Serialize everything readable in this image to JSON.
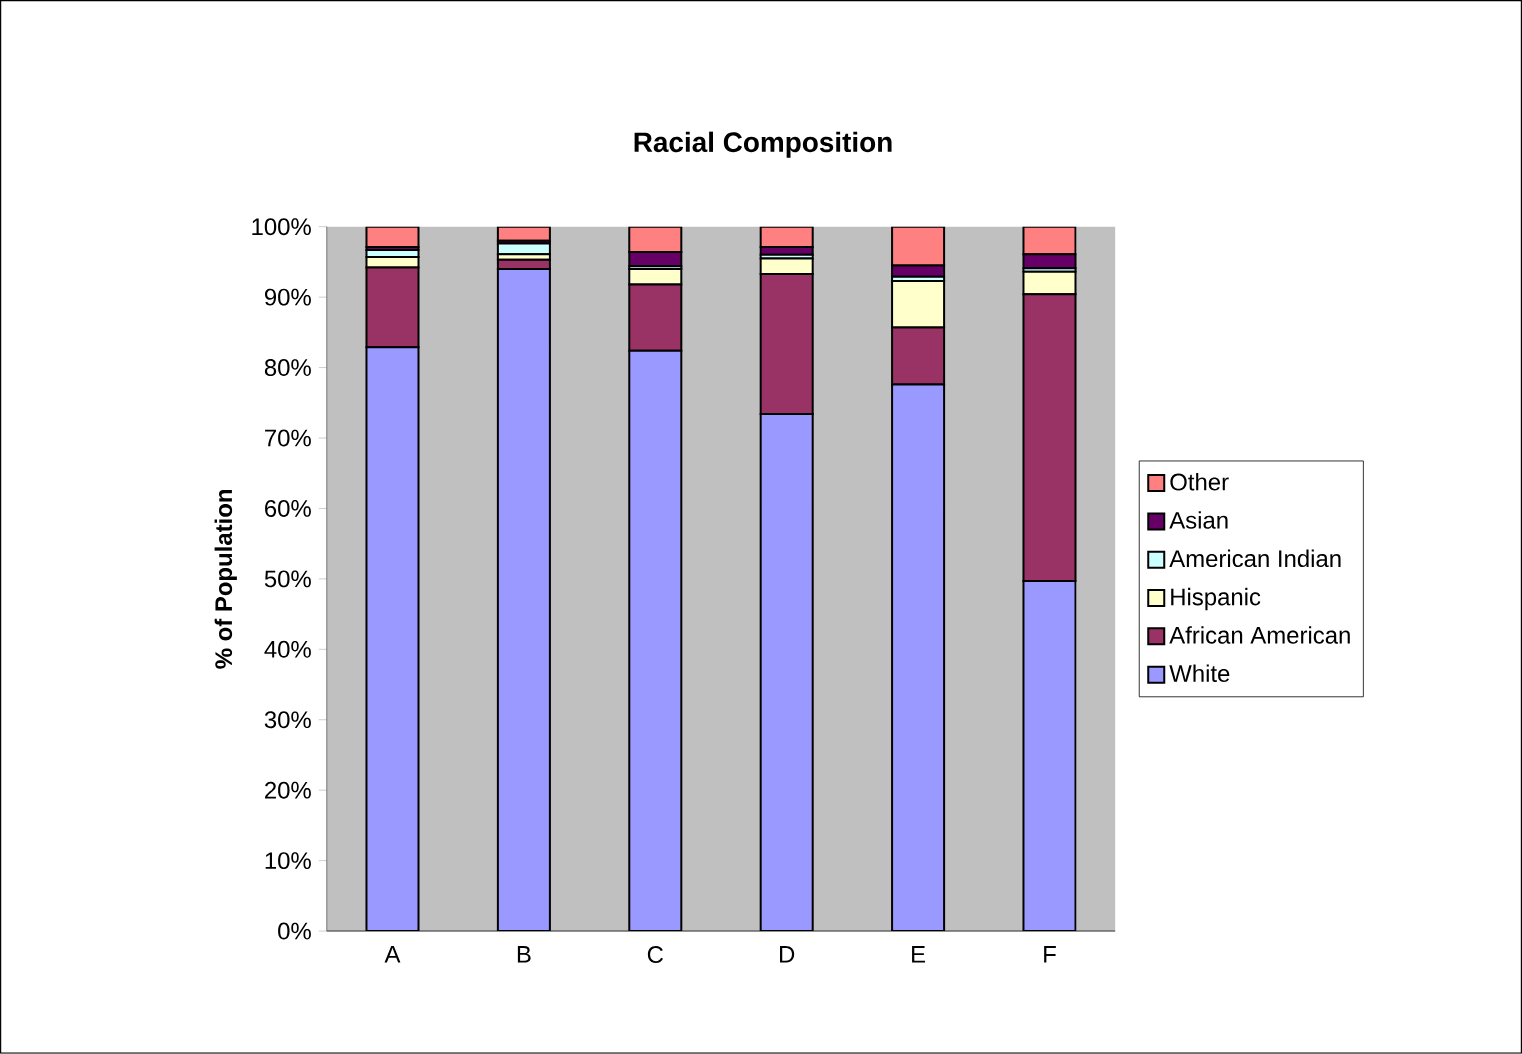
{
  "chart_data": {
    "type": "bar",
    "stacked": true,
    "title": "Racial Composition",
    "ylabel": "% of Population",
    "categories": [
      "A",
      "B",
      "C",
      "D",
      "E",
      "F"
    ],
    "series": [
      {
        "name": "White",
        "color": "#9999ff",
        "values": [
          82.9,
          94.0,
          82.4,
          73.4,
          77.6,
          49.7
        ]
      },
      {
        "name": "African American",
        "color": "#993366",
        "values": [
          11.3,
          1.3,
          9.4,
          19.9,
          8.1,
          40.7
        ]
      },
      {
        "name": "Hispanic",
        "color": "#ffffcc",
        "values": [
          1.5,
          0.8,
          2.2,
          2.2,
          6.6,
          3.2
        ]
      },
      {
        "name": "American Indian",
        "color": "#ccffff",
        "values": [
          1.0,
          1.5,
          0.4,
          0.5,
          0.6,
          0.5
        ]
      },
      {
        "name": "Asian",
        "color": "#660066",
        "values": [
          0.4,
          0.4,
          2.0,
          1.1,
          1.6,
          2.0
        ]
      },
      {
        "name": "Other",
        "color": "#ff8080",
        "values": [
          2.9,
          2.0,
          3.6,
          2.9,
          5.5,
          3.9
        ]
      }
    ],
    "ylim": [
      0,
      100
    ],
    "yticks": [
      {
        "value": 0,
        "label": "0%"
      },
      {
        "value": 10,
        "label": "10%"
      },
      {
        "value": 20,
        "label": "20%"
      },
      {
        "value": 30,
        "label": "30%"
      },
      {
        "value": 40,
        "label": "40%"
      },
      {
        "value": 50,
        "label": "50%"
      },
      {
        "value": 60,
        "label": "60%"
      },
      {
        "value": 70,
        "label": "70%"
      },
      {
        "value": 80,
        "label": "80%"
      },
      {
        "value": 90,
        "label": "90%"
      },
      {
        "value": 100,
        "label": "100%"
      }
    ],
    "legend": "right",
    "grid": false
  }
}
